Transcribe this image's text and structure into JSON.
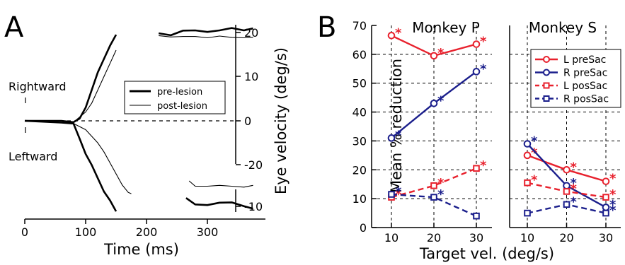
{
  "chart_data": [
    {
      "type": "line",
      "panel_label": "A",
      "xlabel": "Time (ms)",
      "ylabel": "Eye velocity (deg/s)",
      "x_ticks": [
        0,
        100,
        200,
        300
      ],
      "xlim": [
        0,
        380
      ],
      "y_ticks_right_upper": [
        20,
        10,
        0,
        -20
      ],
      "y_ticks_right_lower": [
        -10
      ],
      "text_labels": [
        "Rightward",
        "Leftward"
      ],
      "legend": {
        "placement": "center-right",
        "entries": [
          "pre-lesion",
          "post-lesion"
        ]
      },
      "reference_line": 0,
      "series": [
        {
          "name": "pre-lesion",
          "style": "thick",
          "direction": "rightward",
          "x": [
            0,
            60,
            80,
            90,
            100,
            110,
            120,
            130,
            140,
            150
          ],
          "y": [
            0,
            0,
            -0.3,
            0.5,
            3,
            7,
            11,
            14,
            17,
            19.5
          ]
        },
        {
          "name": "post-lesion",
          "style": "thin",
          "direction": "rightward",
          "x": [
            0,
            60,
            80,
            100,
            110,
            120,
            130,
            140,
            150
          ],
          "y": [
            0,
            0,
            -0.3,
            2,
            4,
            7,
            10,
            13,
            16
          ]
        },
        {
          "name": "pre-lesion",
          "style": "thick",
          "direction": "leftward",
          "x": [
            0,
            60,
            80,
            90,
            100,
            110,
            120,
            130,
            140,
            150
          ],
          "y": [
            0,
            -0.4,
            -0.6,
            -4,
            -7.5,
            -10,
            -13,
            -16,
            -18,
            -20.5
          ]
        },
        {
          "name": "post-lesion",
          "style": "thin",
          "direction": "leftward",
          "x": [
            0,
            80,
            100,
            110,
            120,
            130,
            140,
            150,
            160,
            170,
            175
          ],
          "y": [
            0,
            -0.6,
            -2,
            -3.5,
            -5,
            -7,
            -9.5,
            -12,
            -14.5,
            -16.2,
            -16.5
          ]
        },
        {
          "name": "pre-lesion",
          "style": "thick",
          "direction": "rightward-late",
          "x": [
            220,
            240,
            260,
            280,
            300,
            320,
            340,
            360,
            375
          ],
          "y": [
            19.7,
            19.5,
            20.3,
            20.6,
            20,
            20.6,
            20.9,
            20.6,
            20.8
          ]
        },
        {
          "name": "post-lesion",
          "style": "thin",
          "direction": "rightward-late",
          "x": [
            220,
            240,
            260,
            280,
            300,
            320,
            340,
            360,
            375
          ],
          "y": [
            19.3,
            19,
            19.1,
            19.1,
            18.8,
            19.2,
            18.9,
            18.8,
            18.9
          ]
        },
        {
          "name": "pre-lesion",
          "style": "thick",
          "direction": "leftward-late",
          "x": [
            265,
            280,
            300,
            320,
            340,
            360,
            375
          ],
          "y": [
            -8.8,
            -9.4,
            -9.6,
            -9.2,
            -9.3,
            -9.6,
            -10
          ]
        },
        {
          "name": "post-lesion",
          "style": "thin",
          "direction": "leftward-late",
          "x": [
            270,
            280,
            300,
            320,
            340,
            360,
            375
          ],
          "y": [
            -6.8,
            -7.4,
            -7.4,
            -7.3,
            -7.4,
            -7.5,
            -7.3
          ]
        }
      ]
    },
    {
      "type": "line",
      "panel_label": "B",
      "title": "Monkey P",
      "xlabel": "Target vel. (deg/s)",
      "ylabel": "Mean % reduction",
      "x": [
        10,
        20,
        30
      ],
      "ylim": [
        0,
        70
      ],
      "y_ticks": [
        0,
        10,
        20,
        30,
        40,
        50,
        60,
        70
      ],
      "grid": true,
      "series": [
        {
          "name": "L preSac",
          "color": "#e8212d",
          "line": "solid",
          "marker": "circle",
          "values": [
            66.5,
            59.5,
            63.5
          ],
          "significant": [
            true,
            true,
            true
          ]
        },
        {
          "name": "R preSac",
          "color": "#1b1f8c",
          "line": "solid",
          "marker": "circle",
          "values": [
            31,
            43,
            54
          ],
          "significant": [
            true,
            true,
            true
          ]
        },
        {
          "name": "L posSac",
          "color": "#e8212d",
          "line": "dashed",
          "marker": "square",
          "values": [
            10.5,
            14.5,
            20.5
          ],
          "significant": [
            true,
            true,
            true
          ]
        },
        {
          "name": "R posSac",
          "color": "#1b1f8c",
          "line": "dashed",
          "marker": "square",
          "values": [
            11.5,
            10.5,
            4
          ],
          "significant": [
            true,
            true,
            false
          ]
        }
      ]
    },
    {
      "type": "line",
      "title": "Monkey S",
      "xlabel": "Target vel. (deg/s)",
      "x": [
        10,
        20,
        30
      ],
      "ylim": [
        0,
        70
      ],
      "grid": true,
      "legend": {
        "placement": "top-right",
        "entries": [
          "L preSac",
          "R preSac",
          "L posSac",
          "R posSac"
        ]
      },
      "series": [
        {
          "name": "L preSac",
          "color": "#e8212d",
          "line": "solid",
          "marker": "circle",
          "values": [
            25,
            20,
            16
          ],
          "significant": [
            true,
            true,
            true
          ]
        },
        {
          "name": "R preSac",
          "color": "#1b1f8c",
          "line": "solid",
          "marker": "circle",
          "values": [
            29,
            14.5,
            7
          ],
          "significant": [
            true,
            true,
            true
          ]
        },
        {
          "name": "L posSac",
          "color": "#e8212d",
          "line": "dashed",
          "marker": "square",
          "values": [
            15.5,
            12.5,
            10.5
          ],
          "significant": [
            true,
            true,
            true
          ]
        },
        {
          "name": "R posSac",
          "color": "#1b1f8c",
          "line": "dashed",
          "marker": "square",
          "values": [
            5,
            8,
            5
          ],
          "significant": [
            false,
            true,
            true
          ]
        }
      ]
    }
  ]
}
